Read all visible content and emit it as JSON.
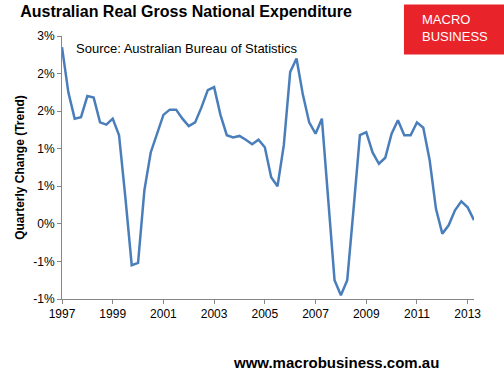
{
  "chart_data": {
    "type": "line",
    "title": "Australian Real Gross National Expenditure",
    "subtitle": "Source: Australian Bureau of Statistics",
    "y_label": "Quarterly Change (Trend)",
    "logo": [
      "MACRO",
      "BUSINESS"
    ],
    "footer": "www.macrobusiness.com.au",
    "categories": [
      "1997",
      null,
      null,
      null,
      null,
      null,
      null,
      null,
      "1999",
      null,
      null,
      null,
      null,
      null,
      null,
      null,
      "2001",
      null,
      null,
      null,
      null,
      null,
      null,
      null,
      "2003",
      null,
      null,
      null,
      null,
      null,
      null,
      null,
      "2005",
      null,
      null,
      null,
      null,
      null,
      null,
      null,
      "2007",
      null,
      null,
      null,
      null,
      null,
      null,
      null,
      "2009",
      null,
      null,
      null,
      null,
      null,
      null,
      null,
      "2011",
      null,
      null,
      null,
      null,
      null,
      null,
      null,
      "2013",
      null
    ],
    "values": [
      2.35,
      1.75,
      1.4,
      1.42,
      1.7,
      1.68,
      1.35,
      1.32,
      1.4,
      1.18,
      0.35,
      -0.55,
      -0.52,
      0.45,
      0.95,
      1.2,
      1.45,
      1.52,
      1.52,
      1.4,
      1.3,
      1.35,
      1.55,
      1.78,
      1.82,
      1.45,
      1.18,
      1.15,
      1.17,
      1.12,
      1.06,
      1.12,
      1.02,
      0.62,
      0.5,
      1.05,
      2.02,
      2.2,
      1.72,
      1.35,
      1.2,
      1.4,
      0.35,
      -0.75,
      -0.95,
      -0.75,
      0.2,
      1.18,
      1.22,
      0.95,
      0.8,
      0.88,
      1.2,
      1.38,
      1.18,
      1.18,
      1.35,
      1.28,
      0.85,
      0.2,
      -0.13,
      -0.02,
      0.18,
      0.3,
      0.22,
      0.05
    ],
    "color": "#4a7ebb",
    "ylim": [
      -1,
      2.5
    ],
    "yticks": [
      {
        "value": -1,
        "label": "-1%"
      },
      {
        "value": -0.5,
        "label": "-1%"
      },
      {
        "value": 0,
        "label": "0%"
      },
      {
        "value": 0.5,
        "label": "1%"
      },
      {
        "value": 1,
        "label": "1%"
      },
      {
        "value": 1.5,
        "label": "2%"
      },
      {
        "value": 2,
        "label": "2%"
      },
      {
        "value": 2.5,
        "label": "3%"
      }
    ],
    "grid": false
  }
}
